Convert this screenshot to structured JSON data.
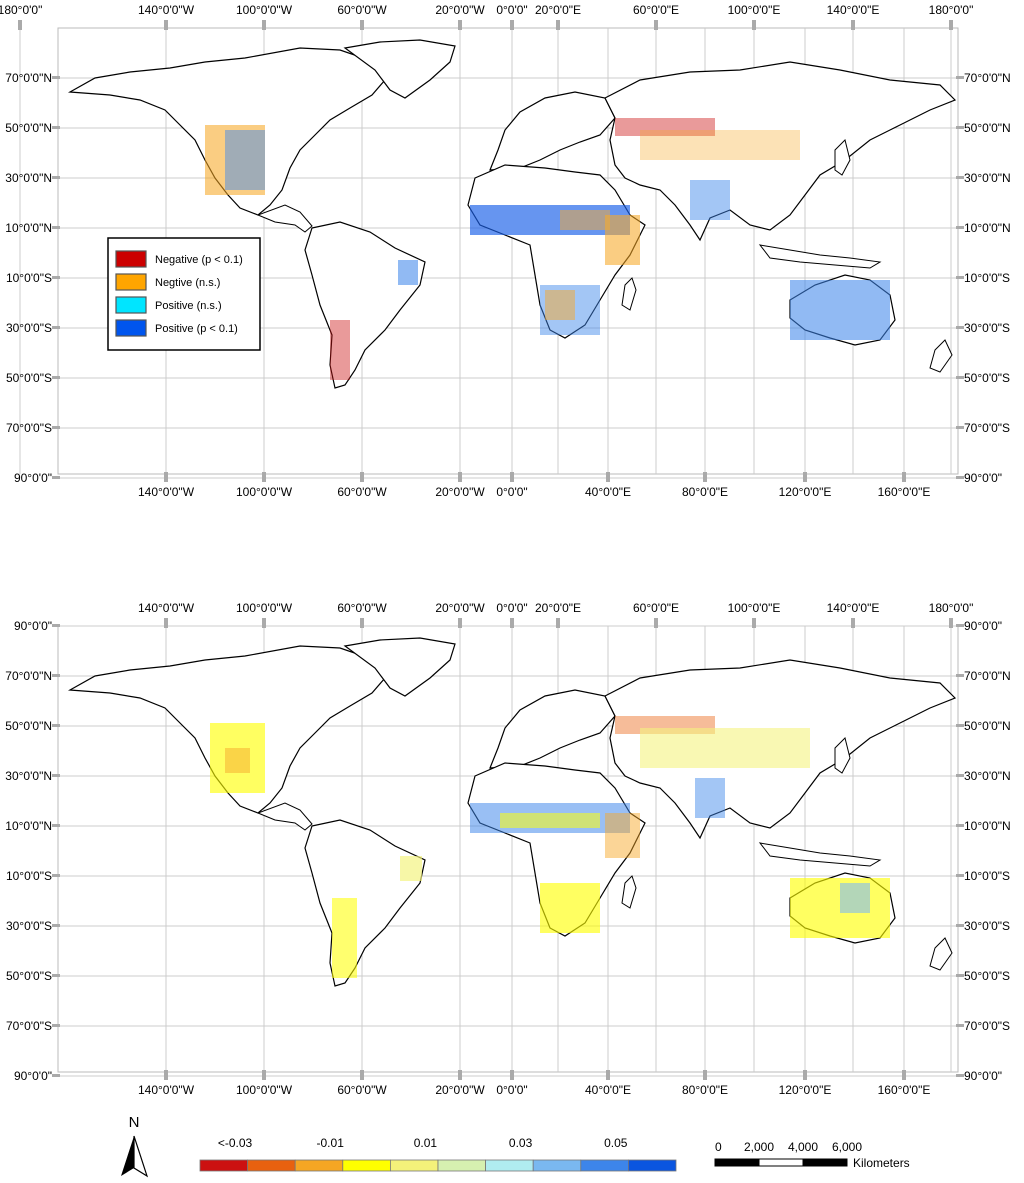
{
  "maps": [
    {
      "id": "top",
      "top_labels": [
        "180°0'0\"",
        "140°0'0\"W",
        "100°0'0\"W",
        "60°0'0\"W",
        "20°0'0\"W",
        "0°0'0\"",
        "20°0'0\"E",
        "60°0'0\"E",
        "100°0'0\"E",
        "140°0'0\"E",
        "180°0'0\""
      ],
      "bottom_labels": [
        "140°0'0\"W",
        "100°0'0\"W",
        "60°0'0\"W",
        "20°0'0\"W",
        "0°0'0\"",
        "40°0'0\"E",
        "80°0'0\"E",
        "120°0'0\"E",
        "160°0'0\"E"
      ],
      "lat_labels": [
        "70°0'0\"N",
        "50°0'0\"N",
        "30°0'0\"N",
        "10°0'0\"N",
        "10°0'0\"S",
        "30°0'0\"S",
        "50°0'0\"S",
        "70°0'0\"S",
        "90°0'0\""
      ]
    },
    {
      "id": "bottom",
      "top_labels": [
        "140°0'0\"W",
        "100°0'0\"W",
        "60°0'0\"W",
        "20°0'0\"W",
        "0°0'0\"",
        "20°0'0\"E",
        "60°0'0\"E",
        "100°0'0\"E",
        "140°0'0\"E",
        "180°0'0\""
      ],
      "bottom_labels": [
        "140°0'0\"W",
        "100°0'0\"W",
        "60°0'0\"W",
        "20°0'0\"W",
        "0°0'0\"",
        "40°0'0\"E",
        "80°0'0\"E",
        "120°0'0\"E",
        "160°0'0\"E"
      ],
      "lat_labels": [
        "90°0'0\"",
        "70°0'0\"N",
        "50°0'0\"N",
        "30°0'0\"N",
        "10°0'0\"N",
        "10°0'0\"S",
        "30°0'0\"S",
        "50°0'0\"S",
        "70°0'0\"S",
        "90°0'0\""
      ]
    }
  ],
  "legend": {
    "items": [
      {
        "label": "Negative (p < 0.1)",
        "color": "#cc0000"
      },
      {
        "label": "Negtive (n.s.)",
        "color": "#ffa500"
      },
      {
        "label": "Positive (n.s.)",
        "color": "#00e5ff"
      },
      {
        "label": "Positive (p < 0.1)",
        "color": "#0055ee"
      }
    ]
  },
  "colorbar": {
    "labels": [
      "<-0.03",
      "-0.01",
      "0.01",
      "0.03",
      "0.05"
    ],
    "colors": [
      "#cc1111",
      "#e8610f",
      "#f5a623",
      "#ffff00",
      "#f4f27a",
      "#d6f0b0",
      "#b0ecf0",
      "#7ab8f0",
      "#3d85ea",
      "#0a55e0"
    ]
  },
  "north_arrow": {
    "label": "N"
  },
  "scale_bar": {
    "ticks": [
      "0",
      "2,000",
      "4,000",
      "6,000"
    ],
    "unit": "Kilometers"
  }
}
